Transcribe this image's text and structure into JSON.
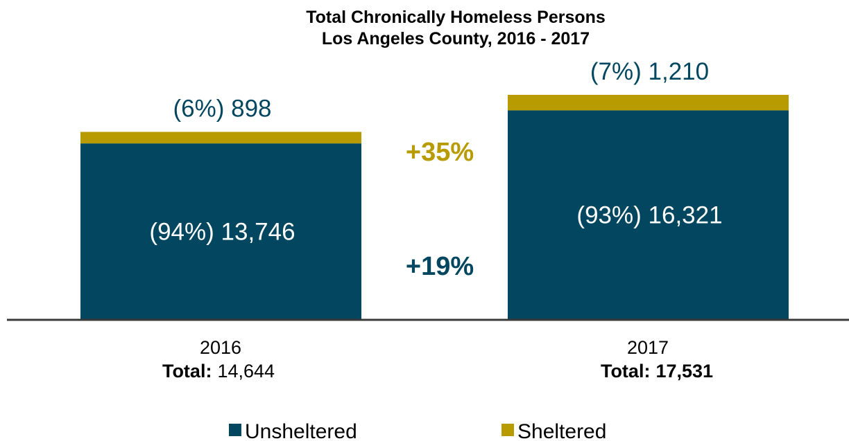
{
  "chart_data": {
    "type": "bar",
    "stacked": true,
    "title": "Total Chronically Homeless Persons",
    "subtitle": "Los Angeles County, 2016 - 2017",
    "categories": [
      "2016",
      "2017"
    ],
    "series": [
      {
        "name": "Unsheltered",
        "color": "#02475f",
        "values": [
          13746,
          16321
        ],
        "labels": [
          "(94%)  13,746",
          "(93%)  16,321"
        ]
      },
      {
        "name": "Sheltered",
        "color": "#b89b00",
        "values": [
          898,
          1210
        ],
        "labels": [
          "(6%)  898",
          "(7%)  1,210"
        ]
      }
    ],
    "totals": [
      {
        "label": "Total:",
        "value": "14,644"
      },
      {
        "label": "Total:",
        "value": "17,531"
      }
    ],
    "changes": [
      {
        "series": "Sheltered",
        "text": "+35%",
        "color": "#b89b00"
      },
      {
        "series": "Unsheltered",
        "text": "+19%",
        "color": "#02475f"
      }
    ],
    "ylim": [
      0,
      18500
    ],
    "grid": false,
    "legend_position": "bottom"
  }
}
